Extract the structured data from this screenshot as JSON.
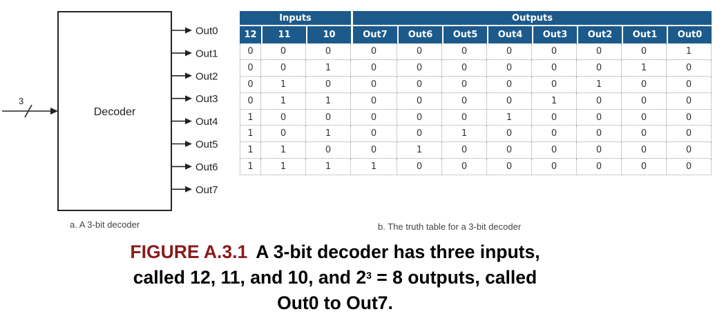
{
  "decoder": {
    "block_label": "Decoder",
    "bus_width": "3",
    "outputs": [
      "Out0",
      "Out1",
      "Out2",
      "Out3",
      "Out4",
      "Out5",
      "Out6",
      "Out7"
    ]
  },
  "truth_table": {
    "inputs_header": "Inputs",
    "outputs_header": "Outputs",
    "columns": [
      "12",
      "11",
      "10",
      "Out7",
      "Out6",
      "Out5",
      "Out4",
      "Out3",
      "Out2",
      "Out1",
      "Out0"
    ],
    "rows": [
      [
        "0",
        "0",
        "0",
        "0",
        "0",
        "0",
        "0",
        "0",
        "0",
        "0",
        "1"
      ],
      [
        "0",
        "0",
        "1",
        "0",
        "0",
        "0",
        "0",
        "0",
        "0",
        "1",
        "0"
      ],
      [
        "0",
        "1",
        "0",
        "0",
        "0",
        "0",
        "0",
        "0",
        "1",
        "0",
        "0"
      ],
      [
        "0",
        "1",
        "1",
        "0",
        "0",
        "0",
        "0",
        "1",
        "0",
        "0",
        "0"
      ],
      [
        "1",
        "0",
        "0",
        "0",
        "0",
        "0",
        "1",
        "0",
        "0",
        "0",
        "0"
      ],
      [
        "1",
        "0",
        "1",
        "0",
        "0",
        "1",
        "0",
        "0",
        "0",
        "0",
        "0"
      ],
      [
        "1",
        "1",
        "0",
        "0",
        "1",
        "0",
        "0",
        "0",
        "0",
        "0",
        "0"
      ],
      [
        "1",
        "1",
        "1",
        "1",
        "0",
        "0",
        "0",
        "0",
        "0",
        "0",
        "0"
      ]
    ]
  },
  "captions": {
    "part_a": "a. A 3-bit decoder",
    "part_b": "b. The truth table for a 3-bit decoder",
    "figure_label": "FIGURE A.3.1",
    "line1": "A 3-bit decoder has three inputs,",
    "line2_pre": "called 12, 11, and 10, and 2",
    "line2_sup": "3",
    "line2_post": " = 8 outputs, called",
    "line3": "Out0 to Out7."
  }
}
